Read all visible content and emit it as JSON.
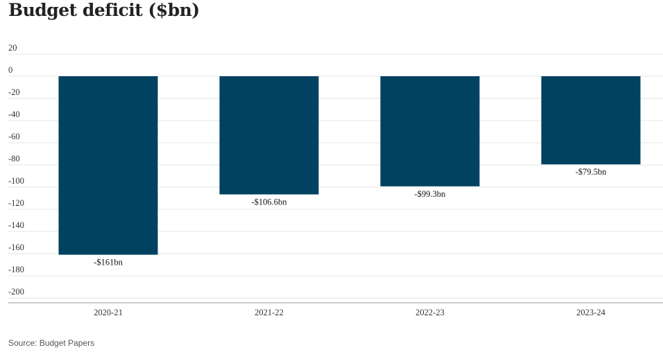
{
  "title": "Budget deficit ($bn)",
  "source": "Source: Budget Papers",
  "colors": {
    "bar": "#004260",
    "grid": "#e6e6e6",
    "baseline": "#cccccc"
  },
  "chart_data": {
    "type": "bar",
    "title": "Budget deficit ($bn)",
    "xlabel": "",
    "ylabel": "",
    "categories": [
      "2020-21",
      "2021-22",
      "2022-23",
      "2023-24"
    ],
    "values": [
      -161,
      -106.6,
      -99.3,
      -79.5
    ],
    "data_labels": [
      "-$161bn",
      "-$106.6bn",
      "-$99.3bn",
      "-$79.5bn"
    ],
    "yticks": [
      20,
      0,
      -20,
      -40,
      -60,
      -80,
      -100,
      -120,
      -140,
      -160,
      -180,
      -200
    ],
    "ylim": [
      -200,
      20
    ],
    "grid": true,
    "legend": "none"
  }
}
